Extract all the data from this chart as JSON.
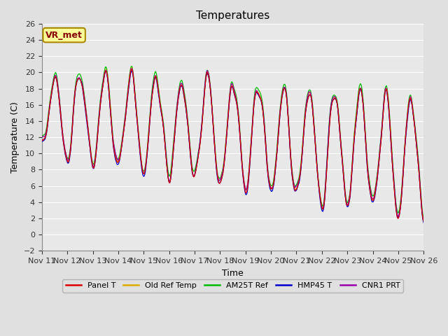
{
  "title": "Temperatures",
  "xlabel": "Time",
  "ylabel": "Temperature (C)",
  "ylim": [
    -2,
    26
  ],
  "yticks": [
    -2,
    0,
    2,
    4,
    6,
    8,
    10,
    12,
    14,
    16,
    18,
    20,
    22,
    24,
    26
  ],
  "annotation": "VR_met",
  "bg_color": "#e0e0e0",
  "legend_labels": [
    "Panel T",
    "Old Ref Temp",
    "AM25T Ref",
    "HMP45 T",
    "CNR1 PRT"
  ],
  "legend_colors": [
    "#dd0000",
    "#ddaa00",
    "#00bb00",
    "#0000cc",
    "#9900aa"
  ],
  "line_width": 0.9,
  "xtick_labels": [
    "Nov 11",
    "Nov 12",
    "Nov 13",
    "Nov 14",
    "Nov 15",
    "Nov 16",
    "Nov 17",
    "Nov 18",
    "Nov 19",
    "Nov 20",
    "Nov 21",
    "Nov 22",
    "Nov 23",
    "Nov 24",
    "Nov 25",
    "Nov 26"
  ],
  "figsize": [
    6.4,
    4.8
  ],
  "dpi": 100
}
